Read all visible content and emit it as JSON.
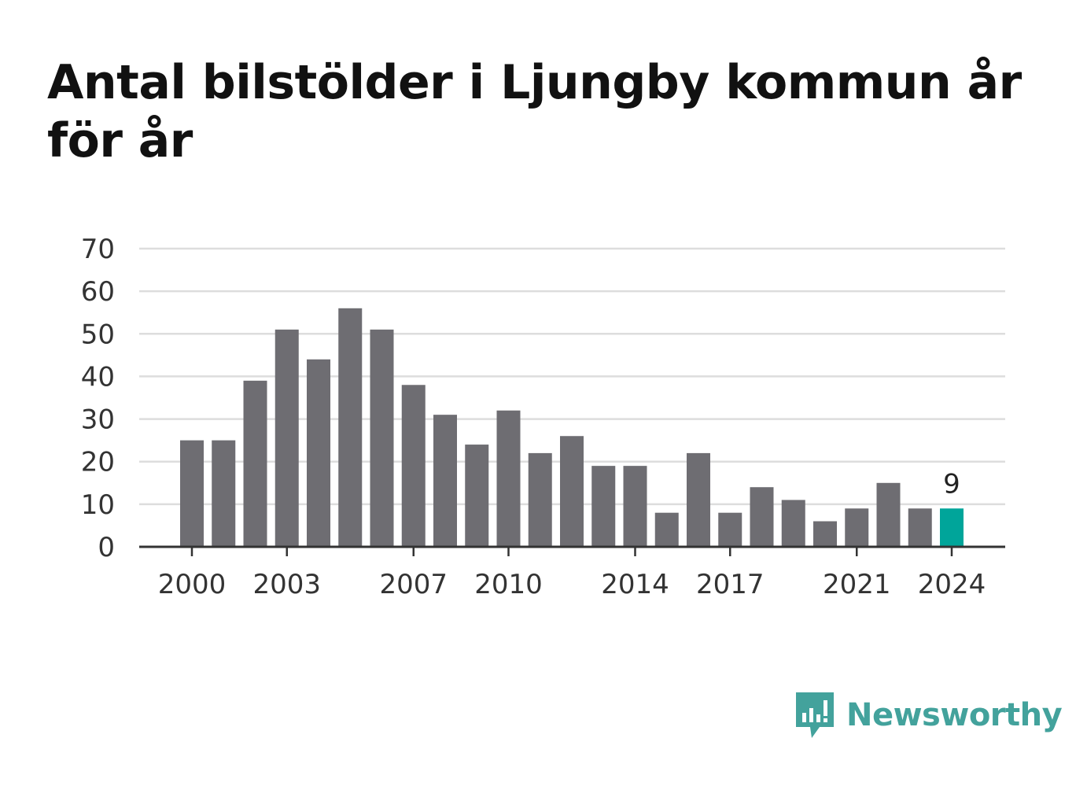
{
  "chart_data": {
    "type": "bar",
    "title": "Antal bilstölder i Ljungby kommun år för år",
    "xlabel": "",
    "ylabel": "",
    "categories": [
      "2000",
      "2001",
      "2002",
      "2003",
      "2004",
      "2005",
      "2006",
      "2007",
      "2008",
      "2009",
      "2010",
      "2011",
      "2012",
      "2013",
      "2014",
      "2015",
      "2016",
      "2017",
      "2018",
      "2019",
      "2020",
      "2021",
      "2022",
      "2023",
      "2024"
    ],
    "values": [
      25,
      25,
      39,
      51,
      44,
      56,
      51,
      38,
      31,
      24,
      32,
      22,
      26,
      19,
      19,
      8,
      22,
      8,
      14,
      11,
      6,
      9,
      15,
      9,
      9
    ],
    "ylim": [
      0,
      70
    ],
    "yticks": [
      "0",
      "10",
      "20",
      "30",
      "40",
      "50",
      "60",
      "70"
    ],
    "xticks": [
      "2000",
      "2003",
      "2007",
      "2010",
      "2014",
      "2017",
      "2021",
      "2024"
    ],
    "highlight": {
      "category": "2024",
      "label": "9"
    },
    "grid": true,
    "legend": "none",
    "colors": {
      "bar": "#6e6d72",
      "highlight": "#00a59a",
      "grid": "#dddddd",
      "axis": "#333333"
    }
  },
  "branding": {
    "name": "Newsworthy",
    "icon": "newsworthy-logo-icon",
    "color": "#43a29c"
  }
}
